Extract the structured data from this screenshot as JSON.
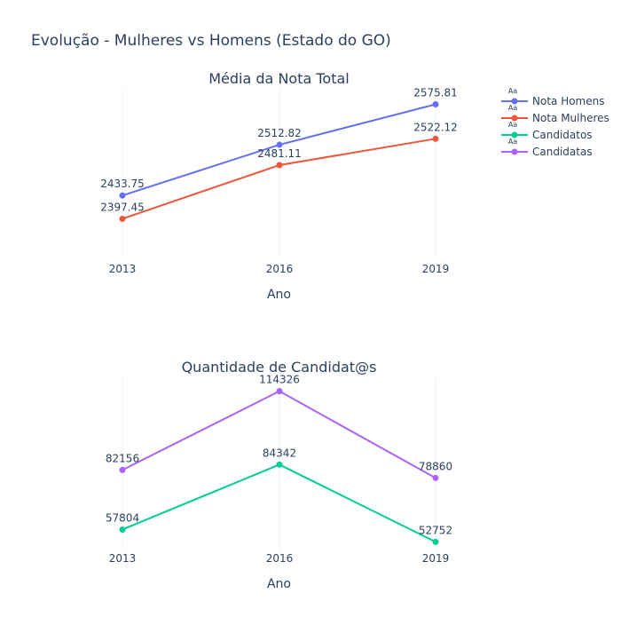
{
  "title": "Evolução - Mulheres vs Homens (Estado do GO)",
  "legend": {
    "placement": "top-right",
    "marker_text": "Aa",
    "items": [
      {
        "label": "Nota Homens",
        "color": "#636efa"
      },
      {
        "label": "Nota Mulheres",
        "color": "#ef553b"
      },
      {
        "label": "Candidatos",
        "color": "#00cc96"
      },
      {
        "label": "Candidatas",
        "color": "#ab63fa"
      }
    ]
  },
  "chart_data": [
    {
      "type": "line",
      "title": "Média da Nota Total",
      "xlabel": "Ano",
      "ylabel": "",
      "x": [
        "2013",
        "2016",
        "2019"
      ],
      "ylim": [
        2340,
        2600
      ],
      "grid": true,
      "series": [
        {
          "name": "Nota Homens",
          "color": "#636efa",
          "values": [
            2433.75,
            2512.82,
            2575.81
          ],
          "labels": [
            "2433.75",
            "2512.82",
            "2575.81"
          ]
        },
        {
          "name": "Nota Mulheres",
          "color": "#ef553b",
          "values": [
            2397.45,
            2481.11,
            2522.12
          ],
          "labels": [
            "2397.45",
            "2481.11",
            "2522.12"
          ]
        }
      ]
    },
    {
      "type": "line",
      "title": "Quantidade de Candidat@s",
      "xlabel": "Ano",
      "ylabel": "",
      "x": [
        "2013",
        "2016",
        "2019"
      ],
      "ylim": [
        50000,
        120000
      ],
      "grid": true,
      "series": [
        {
          "name": "Candidatos",
          "color": "#00cc96",
          "values": [
            57804,
            84342,
            52752
          ],
          "labels": [
            "57804",
            "84342",
            "52752"
          ]
        },
        {
          "name": "Candidatas",
          "color": "#ab63fa",
          "values": [
            82156,
            114326,
            78860
          ],
          "labels": [
            "82156",
            "114326",
            "78860"
          ]
        }
      ]
    }
  ]
}
